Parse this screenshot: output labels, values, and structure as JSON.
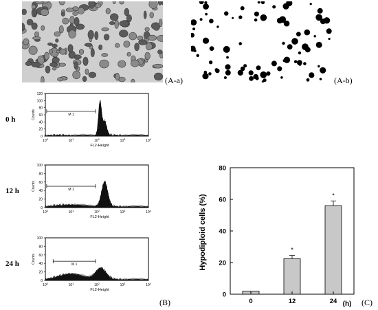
{
  "panels": {
    "a_a": "(A-a)",
    "a_b": "(A-b)",
    "b": "(B)",
    "c": "(C)"
  },
  "histograms": [
    {
      "time": "0 h",
      "marker": "M 1",
      "xlabel": "FL2-Height",
      "ylabel": "Counts",
      "yticks": [
        "0",
        "20",
        "40",
        "60",
        "80",
        "100",
        "120"
      ],
      "xticks": [
        "10^0",
        "10^1",
        "10^2",
        "10^3",
        "10^4"
      ]
    },
    {
      "time": "12 h",
      "marker": "M 1",
      "xlabel": "FL2-Height",
      "ylabel": "Counts",
      "yticks": [
        "0",
        "20",
        "40",
        "60",
        "80",
        "100"
      ],
      "xticks": [
        "10^0",
        "10^1",
        "10^2",
        "10^3",
        "10^4"
      ]
    },
    {
      "time": "24 h",
      "marker": "M 1",
      "xlabel": "FL2-Height",
      "ylabel": "Counts",
      "yticks": [
        "0",
        "20",
        "40",
        "60",
        "80",
        "100"
      ],
      "xticks": [
        "10^0",
        "10^1",
        "10^2",
        "10^3",
        "10^4"
      ]
    }
  ],
  "chart_data": {
    "type": "bar",
    "categories": [
      "0",
      "12",
      "24"
    ],
    "values": [
      2,
      22.5,
      56
    ],
    "errors": [
      0,
      2,
      3
    ],
    "significance": [
      "",
      "*",
      "*"
    ],
    "ylabel": "Hypodiploid cells (%)",
    "xunit": "(h)",
    "ylim": [
      0,
      80
    ],
    "yticks": [
      0,
      20,
      40,
      60,
      80
    ],
    "bar_color": "#c8c8c8"
  }
}
